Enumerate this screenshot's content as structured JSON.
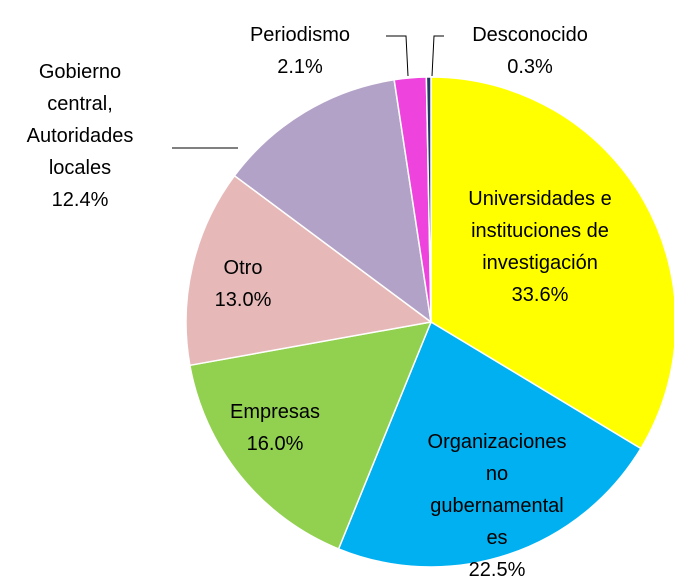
{
  "chart_data": {
    "type": "pie",
    "categories": [
      "Universidades e instituciones de investigación",
      "Organizaciones no gubernamentales",
      "Empresas",
      "Otro",
      "Gobierno central, Autoridades locales",
      "Periodismo",
      "Desconocido"
    ],
    "values": [
      33.6,
      22.5,
      16.0,
      13.0,
      12.4,
      2.1,
      0.3
    ],
    "value_labels": [
      "33.6%",
      "22.5%",
      "16.0%",
      "13.0%",
      "12.4%",
      "2.1%",
      "0.3%"
    ],
    "colors": [
      "#ffff00",
      "#00b0f0",
      "#92d050",
      "#e6b9b8",
      "#b3a2c7",
      "#ee44dd",
      "#1f3864"
    ]
  }
}
